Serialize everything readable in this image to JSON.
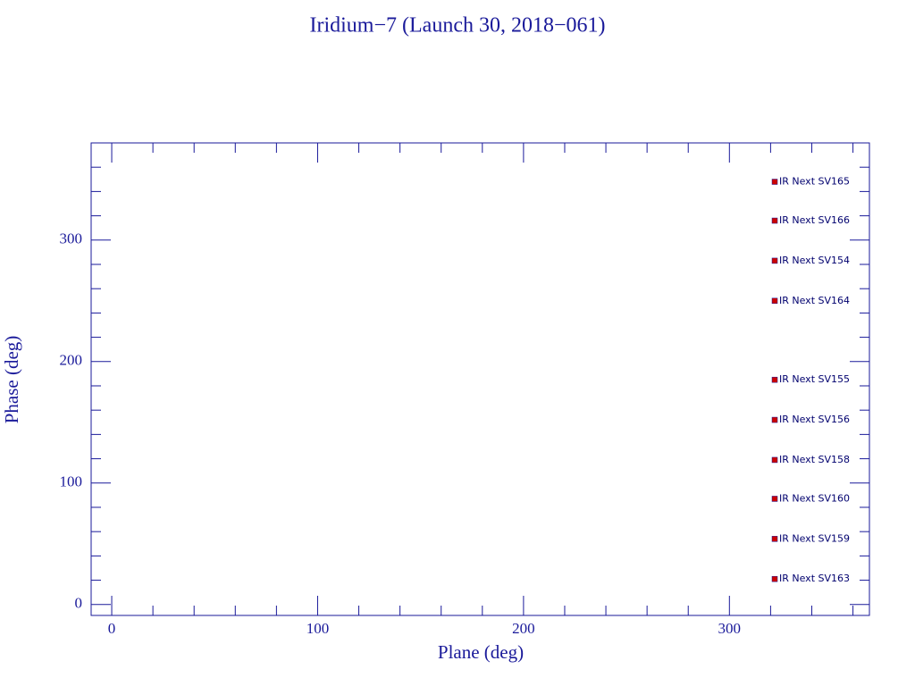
{
  "chart_data": {
    "type": "scatter",
    "title": "Iridium−7 (Launch 30, 2018−061)",
    "x_label": "Plane (deg)",
    "y_label": "Phase (deg)",
    "xlim": [
      -10,
      368
    ],
    "ylim": [
      -9,
      380
    ],
    "xticks": [
      0,
      100,
      200,
      300
    ],
    "yticks": [
      0,
      100,
      200,
      300
    ],
    "xminorticks": [
      20,
      40,
      60,
      80,
      120,
      140,
      160,
      180,
      220,
      240,
      260,
      280,
      320,
      340,
      360
    ],
    "yminorticks": [
      20,
      40,
      60,
      80,
      120,
      140,
      160,
      180,
      220,
      240,
      260,
      280,
      320,
      340,
      360
    ],
    "color": "#cc0000",
    "x": [
      322,
      322,
      322,
      322,
      322,
      322,
      322,
      322,
      322,
      322
    ],
    "values": [
      348,
      316,
      283,
      250,
      185,
      152,
      119,
      87,
      54,
      21
    ],
    "labels": [
      "IR Next SV165",
      "IR Next SV166",
      "IR Next SV154",
      "IR Next SV164",
      "IR Next SV155",
      "IR Next SV156",
      "IR Next SV158",
      "IR Next SV160",
      "IR Next SV159",
      "IR Next SV163"
    ]
  }
}
